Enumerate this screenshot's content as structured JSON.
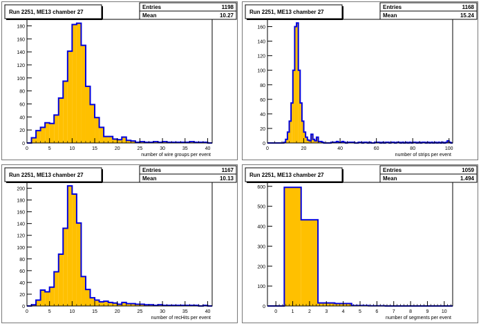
{
  "chart_data": [
    {
      "type": "bar",
      "title": "Run 2251, ME13 chamber 27",
      "stats": {
        "entries_label": "Entries",
        "entries": "1198",
        "mean_label": "Mean",
        "mean": "10.27"
      },
      "xlabel": "number of wire groups per event",
      "xlim": [
        0,
        41
      ],
      "ylim": [
        0,
        190
      ],
      "xticks": [
        0,
        5,
        10,
        15,
        20,
        25,
        30,
        35,
        40
      ],
      "yticks": [
        0,
        20,
        40,
        60,
        80,
        100,
        120,
        140,
        160,
        180
      ],
      "bin_width": 1,
      "x": [
        0,
        1,
        2,
        3,
        4,
        5,
        6,
        7,
        8,
        9,
        10,
        11,
        12,
        13,
        14,
        15,
        16,
        17,
        18,
        19,
        20,
        21,
        22,
        23,
        24,
        25,
        26,
        27,
        28,
        29,
        30,
        31,
        32,
        33,
        34,
        35,
        36,
        37,
        38,
        39,
        40
      ],
      "values": [
        0,
        8,
        19,
        24,
        31,
        30,
        43,
        69,
        95,
        141,
        182,
        184,
        150,
        87,
        59,
        39,
        24,
        10,
        10,
        6,
        5,
        9,
        4,
        3,
        1,
        2,
        1,
        1,
        2,
        1,
        2,
        1,
        1,
        1,
        1,
        1,
        2,
        1,
        1,
        1,
        0
      ]
    },
    {
      "type": "bar",
      "title": "Run 2251, ME13 chamber 27",
      "stats": {
        "entries_label": "Entries",
        "entries": "1168",
        "mean_label": "Mean",
        "mean": "15.24"
      },
      "xlabel": "number of strips per event",
      "xlim": [
        0,
        102
      ],
      "ylim": [
        0,
        170
      ],
      "xticks": [
        0,
        20,
        40,
        60,
        80,
        100
      ],
      "yticks": [
        0,
        20,
        40,
        60,
        80,
        100,
        120,
        140,
        160
      ],
      "bin_width": 1,
      "x": [
        0,
        1,
        2,
        3,
        4,
        5,
        6,
        7,
        8,
        9,
        10,
        11,
        12,
        13,
        14,
        15,
        16,
        17,
        18,
        19,
        20,
        21,
        22,
        23,
        24,
        25,
        26,
        27,
        28,
        29,
        30,
        31,
        32,
        33,
        34,
        35,
        36,
        37,
        38,
        39,
        40,
        41,
        42,
        43,
        44,
        45,
        46,
        47,
        48,
        49,
        50,
        51,
        52,
        53,
        54,
        55,
        56,
        57,
        58,
        59,
        60,
        61,
        62,
        63,
        64,
        65,
        66,
        67,
        68,
        69,
        70,
        71,
        72,
        73,
        74,
        75,
        76,
        77,
        78,
        79,
        80,
        81,
        82,
        83,
        84,
        85,
        86,
        87,
        88,
        89,
        90,
        91,
        92,
        93,
        94,
        95,
        96,
        97,
        98,
        99,
        100,
        101
      ],
      "values": [
        0,
        0,
        0,
        0,
        0,
        0,
        0,
        0,
        0,
        1,
        5,
        15,
        30,
        55,
        100,
        160,
        165,
        100,
        55,
        30,
        15,
        8,
        4,
        3,
        12,
        5,
        3,
        8,
        2,
        2,
        1,
        0,
        0,
        0,
        0,
        1,
        1,
        1,
        2,
        1,
        1,
        2,
        1,
        0,
        1,
        1,
        1,
        1,
        0,
        0,
        1,
        1,
        0,
        1,
        1,
        0,
        1,
        0,
        0,
        1,
        1,
        1,
        0,
        1,
        0,
        1,
        1,
        0,
        1,
        1,
        0,
        1,
        1,
        0,
        1,
        0,
        1,
        0,
        1,
        0,
        1,
        1,
        0,
        1,
        0,
        1,
        1,
        0,
        1,
        0,
        1,
        0,
        1,
        0,
        1,
        0,
        1,
        0,
        1,
        3,
        1,
        0
      ]
    },
    {
      "type": "bar",
      "title": "Run 2251, ME13 chamber 27",
      "stats": {
        "entries_label": "Entries",
        "entries": "1167",
        "mean_label": "Mean",
        "mean": "10.13"
      },
      "xlabel": "number of recHits per event",
      "xlim": [
        0,
        41
      ],
      "ylim": [
        0,
        210
      ],
      "xticks": [
        0,
        5,
        10,
        15,
        20,
        25,
        30,
        35,
        40
      ],
      "yticks": [
        0,
        20,
        40,
        60,
        80,
        100,
        120,
        140,
        160,
        180,
        200
      ],
      "bin_width": 1,
      "x": [
        0,
        1,
        2,
        3,
        4,
        5,
        6,
        7,
        8,
        9,
        10,
        11,
        12,
        13,
        14,
        15,
        16,
        17,
        18,
        19,
        20,
        21,
        22,
        23,
        24,
        25,
        26,
        27,
        28,
        29,
        30,
        31,
        32,
        33,
        34,
        35,
        36,
        37,
        38,
        39,
        40
      ],
      "values": [
        0,
        2,
        10,
        27,
        24,
        32,
        58,
        88,
        132,
        204,
        190,
        141,
        50,
        28,
        14,
        10,
        7,
        8,
        6,
        5,
        3,
        6,
        4,
        4,
        3,
        3,
        2,
        2,
        1,
        2,
        1,
        1,
        1,
        1,
        1,
        1,
        1,
        1,
        0,
        1,
        0
      ]
    },
    {
      "type": "bar",
      "title": "Run 2251, ME13 chamber 27",
      "stats": {
        "entries_label": "Entries",
        "entries": "1059",
        "mean_label": "Mean",
        "mean": "1.494"
      },
      "xlabel": "number of segments per event",
      "xlim": [
        -0.5,
        10.5
      ],
      "ylim": [
        0,
        620
      ],
      "xticks": [
        0,
        1,
        2,
        3,
        4,
        5,
        6,
        7,
        8,
        9,
        10
      ],
      "yticks": [
        0,
        100,
        200,
        300,
        400,
        500,
        600
      ],
      "bin_width": 1,
      "x": [
        0,
        1,
        2,
        3,
        4,
        5,
        6,
        7,
        8,
        9,
        10
      ],
      "values": [
        0,
        595,
        432,
        15,
        12,
        2,
        1,
        0,
        0,
        0,
        0
      ]
    }
  ]
}
